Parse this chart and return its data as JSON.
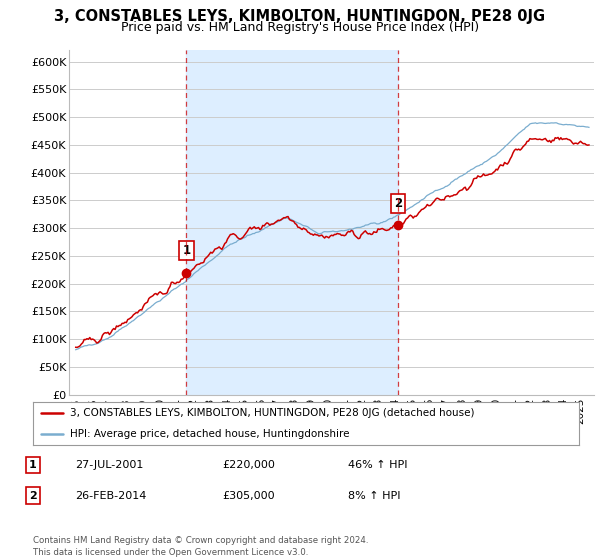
{
  "title": "3, CONSTABLES LEYS, KIMBOLTON, HUNTINGDON, PE28 0JG",
  "subtitle": "Price paid vs. HM Land Registry's House Price Index (HPI)",
  "ylim": [
    0,
    620000
  ],
  "yticks": [
    0,
    50000,
    100000,
    150000,
    200000,
    250000,
    300000,
    350000,
    400000,
    450000,
    500000,
    550000,
    600000
  ],
  "ytick_labels": [
    "£0",
    "£50K",
    "£100K",
    "£150K",
    "£200K",
    "£250K",
    "£300K",
    "£350K",
    "£400K",
    "£450K",
    "£500K",
    "£550K",
    "£600K"
  ],
  "sale1_date": 2001.57,
  "sale1_price": 220000,
  "sale2_date": 2014.15,
  "sale2_price": 305000,
  "red_line_color": "#cc0000",
  "blue_line_color": "#7aadcf",
  "vline_color": "#cc0000",
  "shade_color": "#ddeeff",
  "background_color": "#ffffff",
  "plot_bg_color": "#ffffff",
  "grid_color": "#cccccc",
  "legend_entries": [
    "3, CONSTABLES LEYS, KIMBOLTON, HUNTINGDON, PE28 0JG (detached house)",
    "HPI: Average price, detached house, Huntingdonshire"
  ],
  "table_data": [
    [
      "1",
      "27-JUL-2001",
      "£220,000",
      "46% ↑ HPI"
    ],
    [
      "2",
      "26-FEB-2014",
      "£305,000",
      "8% ↑ HPI"
    ]
  ],
  "footnote": "Contains HM Land Registry data © Crown copyright and database right 2024.\nThis data is licensed under the Open Government Licence v3.0.",
  "title_fontsize": 10.5,
  "subtitle_fontsize": 9
}
